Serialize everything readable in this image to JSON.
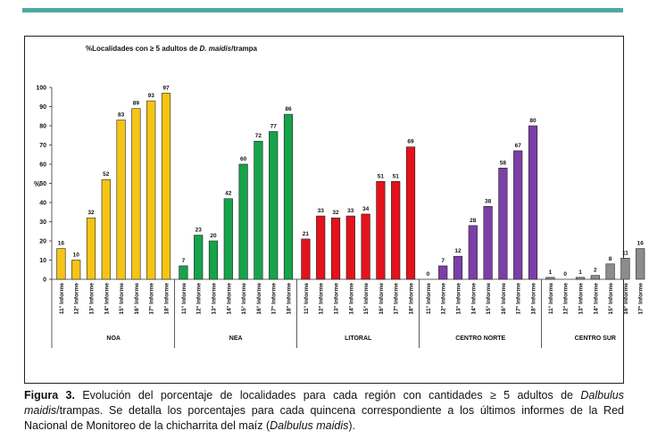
{
  "chart_data": {
    "type": "bar",
    "title_prefix": "%Localidades con ≥ 5 adultos de ",
    "title_species": "D. maidis",
    "title_suffix": "/trampa",
    "ylabel": "%",
    "ylim": [
      0,
      100
    ],
    "yticks": [
      0,
      10,
      20,
      30,
      40,
      50,
      60,
      70,
      80,
      90,
      100
    ],
    "groups": [
      {
        "name": "NOA",
        "color": "#f5c416",
        "categories": [
          "11° Informe",
          "12° Informe",
          "13° Informe",
          "14° Informe",
          "15° Informe",
          "16° Informe",
          "17° Informe",
          "18° Informe"
        ],
        "values": [
          16,
          10,
          32,
          52,
          83,
          89,
          93,
          97
        ]
      },
      {
        "name": "NEA",
        "color": "#16a34a",
        "categories": [
          "11° Informe",
          "12° Informe",
          "13° Informe",
          "14° Informe",
          "15° Informe",
          "16° Informe",
          "17° Informe",
          "18° Informe"
        ],
        "values": [
          7,
          23,
          20,
          42,
          60,
          72,
          77,
          86
        ]
      },
      {
        "name": "LITORAL",
        "color": "#e3121b",
        "categories": [
          "11° Informe",
          "12° Informe",
          "13° Informe",
          "14° Informe",
          "15° Informe",
          "16° Informe",
          "17° Informe",
          "18° Informe"
        ],
        "values": [
          21,
          33,
          32,
          33,
          34,
          51,
          51,
          69
        ]
      },
      {
        "name": "CENTRO NORTE",
        "color": "#7b3fa8",
        "categories": [
          "11° Informe",
          "12° Informe",
          "13° Informe",
          "14° Informe",
          "15° Informe",
          "16° Informe",
          "17° Informe",
          "18° Informe"
        ],
        "values": [
          0,
          7,
          12,
          28,
          38,
          58,
          67,
          80
        ]
      },
      {
        "name": "CENTRO SUR",
        "color": "#8c8c8c",
        "categories": [
          "11° Informe",
          "12° Informe",
          "13° Informe",
          "14° Informe",
          "15° Informe",
          "16° Informe",
          "17° Informe"
        ],
        "values": [
          1,
          0,
          1,
          2,
          8,
          11,
          16
        ]
      }
    ]
  },
  "caption": {
    "label": "Figura 3.",
    "part1": " Evolución del porcentaje de localidades para cada región con cantidades ≥ 5 adultos de ",
    "species1": "Dalbulus maidis",
    "part2": "/trampas. Se detalla los porcentajes para cada quincena correspondiente a los últimos informes de la Red Nacional de Monitoreo de la chicharrita del maíz (",
    "species2": "Dalbulus maidis",
    "part3": ")."
  }
}
